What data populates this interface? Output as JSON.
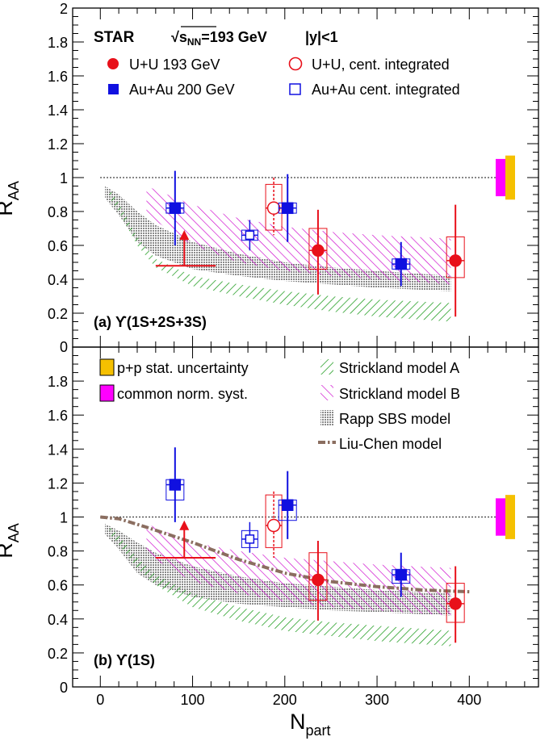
{
  "colors": {
    "uu": "#e8101a",
    "auau": "#1010e0",
    "strickland_a": "#1a9a1a",
    "strickland_b": "#cc00cc",
    "rapp": "#909090",
    "liu_chen": "#8b6e60",
    "pp_box": "#f5c000",
    "norm_box": "#ff00ff"
  },
  "labels": {
    "star": "STAR",
    "energy": "√s_NN=193 GeV",
    "rapidity": "|y|<1",
    "legend_uu": "U+U 193 GeV",
    "legend_uu_int": "U+U, cent. integrated",
    "legend_auau": "Au+Au 200 GeV",
    "legend_auau_int": "Au+Au cent. integrated",
    "legend_pp": "p+p stat. uncertainty",
    "legend_norm": "common norm. syst.",
    "legend_strickland_a": "Strickland model A",
    "legend_strickland_b": "Strickland model B",
    "legend_rapp": "Rapp SBS model",
    "legend_liu_chen": "Liu-Chen model"
  },
  "chart_data": [
    {
      "type": "scatter",
      "panel_label": "(a) ϒ(1S+2S+3S)",
      "xlabel": "N_part",
      "ylabel": "R_AA",
      "xlim": [
        -30,
        475
      ],
      "ylim": [
        0,
        2
      ],
      "xticks": [
        "0",
        "100",
        "200",
        "300",
        "400"
      ],
      "yticks": [
        "0.2",
        "0.4",
        "0.6",
        "0.8",
        "1",
        "1.2",
        "1.4",
        "1.6",
        "1.8",
        "2"
      ],
      "reference_line": 1,
      "series": [
        {
          "name": "U+U 193 GeV",
          "points": [
            {
              "x": 236,
              "y": 0.57,
              "stat_low": 0.31,
              "stat_high": 0.81,
              "sys_low": 0.46,
              "sys_high": 0.7
            },
            {
              "x": 385,
              "y": 0.51,
              "stat_low": 0.18,
              "stat_high": 0.84,
              "sys_low": 0.41,
              "sys_high": 0.65
            }
          ]
        },
        {
          "name": "U+U, cent. integrated",
          "points": [
            {
              "x": 188,
              "y": 0.82,
              "stat_low": 0.66,
              "stat_high": 1.0,
              "sys_low": 0.69,
              "sys_high": 0.96
            }
          ]
        },
        {
          "name": "Au+Au 200 GeV",
          "points": [
            {
              "x": 81,
              "y": 0.82,
              "stat_low": 0.6,
              "stat_high": 1.04,
              "sys_low": 0.79,
              "sys_high": 0.85
            },
            {
              "x": 203,
              "y": 0.82,
              "stat_low": 0.62,
              "stat_high": 1.02,
              "sys_low": 0.79,
              "sys_high": 0.85
            },
            {
              "x": 326,
              "y": 0.49,
              "stat_low": 0.36,
              "stat_high": 0.62,
              "sys_low": 0.46,
              "sys_high": 0.52
            }
          ]
        },
        {
          "name": "Au+Au cent. integrated",
          "points": [
            {
              "x": 162,
              "y": 0.66,
              "stat_low": 0.57,
              "stat_high": 0.75,
              "sys_low": 0.63,
              "sys_high": 0.69
            }
          ]
        }
      ],
      "upper_limit": {
        "x": 91,
        "y": 0.48,
        "arrow_top": 0.69,
        "x_low": 60,
        "x_high": 125
      },
      "norm_boxes": {
        "pp": {
          "low": 0.87,
          "high": 1.13
        },
        "norm": {
          "low": 0.89,
          "high": 1.11
        }
      },
      "bands": {
        "strickland_a": {
          "x": [
            10,
            20,
            40,
            60,
            100,
            150,
            200,
            250,
            300,
            380
          ],
          "low": [
            0.88,
            0.8,
            0.6,
            0.47,
            0.36,
            0.3,
            0.25,
            0.21,
            0.18,
            0.15
          ],
          "high": [
            0.93,
            0.85,
            0.65,
            0.52,
            0.42,
            0.37,
            0.33,
            0.3,
            0.28,
            0.26
          ]
        },
        "strickland_b": {
          "x": [
            50,
            100,
            150,
            200,
            250,
            300,
            380
          ],
          "low": [
            0.78,
            0.6,
            0.5,
            0.45,
            0.42,
            0.4,
            0.37
          ],
          "high": [
            0.95,
            0.84,
            0.76,
            0.71,
            0.68,
            0.66,
            0.64
          ]
        },
        "rapp": {
          "x": [
            5,
            20,
            40,
            60,
            100,
            150,
            200,
            250,
            300,
            380
          ],
          "low": [
            0.88,
            0.78,
            0.62,
            0.54,
            0.46,
            0.42,
            0.39,
            0.37,
            0.35,
            0.33
          ],
          "high": [
            0.95,
            0.9,
            0.8,
            0.72,
            0.62,
            0.55,
            0.5,
            0.47,
            0.45,
            0.42
          ]
        }
      }
    },
    {
      "type": "scatter",
      "panel_label": "(b) ϒ(1S)",
      "xlabel": "N_part",
      "ylabel": "R_AA",
      "xlim": [
        -30,
        475
      ],
      "ylim": [
        0,
        2
      ],
      "xticks": [
        "0",
        "100",
        "200",
        "300",
        "400"
      ],
      "yticks": [
        "0.2",
        "0.4",
        "0.6",
        "0.8",
        "1",
        "1.2",
        "1.4",
        "1.6",
        "1.8"
      ],
      "reference_line": 1,
      "series": [
        {
          "name": "U+U 193 GeV",
          "points": [
            {
              "x": 236,
              "y": 0.63,
              "stat_low": 0.39,
              "stat_high": 0.86,
              "sys_low": 0.51,
              "sys_high": 0.79
            },
            {
              "x": 385,
              "y": 0.49,
              "stat_low": 0.26,
              "stat_high": 0.71,
              "sys_low": 0.38,
              "sys_high": 0.61
            }
          ]
        },
        {
          "name": "U+U, cent. integrated",
          "points": [
            {
              "x": 188,
              "y": 0.95,
              "stat_low": 0.76,
              "stat_high": 1.15,
              "sys_low": 0.82,
              "sys_high": 1.13
            }
          ]
        },
        {
          "name": "Au+Au 200 GeV",
          "points": [
            {
              "x": 81,
              "y": 1.19,
              "stat_low": 0.97,
              "stat_high": 1.41,
              "sys_low": 1.1,
              "sys_high": 1.22
            },
            {
              "x": 203,
              "y": 1.07,
              "stat_low": 0.87,
              "stat_high": 1.27,
              "sys_low": 0.98,
              "sys_high": 1.1
            },
            {
              "x": 326,
              "y": 0.66,
              "stat_low": 0.53,
              "stat_high": 0.79,
              "sys_low": 0.61,
              "sys_high": 0.69
            }
          ]
        },
        {
          "name": "Au+Au cent. integrated",
          "points": [
            {
              "x": 162,
              "y": 0.87,
              "stat_low": 0.79,
              "stat_high": 0.97,
              "sys_low": 0.82,
              "sys_high": 0.92
            }
          ]
        }
      ],
      "upper_limit": {
        "x": 91,
        "y": 0.76,
        "arrow_top": 0.98,
        "x_low": 60,
        "x_high": 125
      },
      "norm_boxes": {
        "pp": {
          "low": 0.87,
          "high": 1.13
        },
        "norm": {
          "low": 0.89,
          "high": 1.11
        }
      },
      "bands": {
        "strickland_a": {
          "x": [
            10,
            20,
            40,
            60,
            100,
            150,
            200,
            250,
            300,
            380
          ],
          "low": [
            0.9,
            0.84,
            0.7,
            0.6,
            0.47,
            0.39,
            0.33,
            0.3,
            0.27,
            0.24
          ],
          "high": [
            0.94,
            0.89,
            0.76,
            0.66,
            0.55,
            0.47,
            0.41,
            0.38,
            0.36,
            0.33
          ]
        },
        "strickland_b": {
          "x": [
            50,
            100,
            150,
            200,
            250,
            300,
            380
          ],
          "low": [
            0.78,
            0.62,
            0.55,
            0.5,
            0.47,
            0.45,
            0.42
          ],
          "high": [
            0.96,
            0.85,
            0.8,
            0.76,
            0.74,
            0.72,
            0.7
          ]
        },
        "rapp": {
          "x": [
            5,
            20,
            40,
            60,
            100,
            150,
            200,
            250,
            300,
            380
          ],
          "low": [
            0.9,
            0.81,
            0.67,
            0.6,
            0.53,
            0.49,
            0.47,
            0.45,
            0.44,
            0.42
          ],
          "high": [
            0.96,
            0.92,
            0.85,
            0.79,
            0.71,
            0.65,
            0.61,
            0.59,
            0.57,
            0.55
          ]
        }
      },
      "liu_chen": {
        "x": [
          0,
          20,
          50,
          100,
          150,
          200,
          250,
          300,
          350,
          400
        ],
        "y": [
          1.0,
          0.99,
          0.94,
          0.85,
          0.75,
          0.67,
          0.62,
          0.59,
          0.57,
          0.56
        ]
      }
    }
  ]
}
